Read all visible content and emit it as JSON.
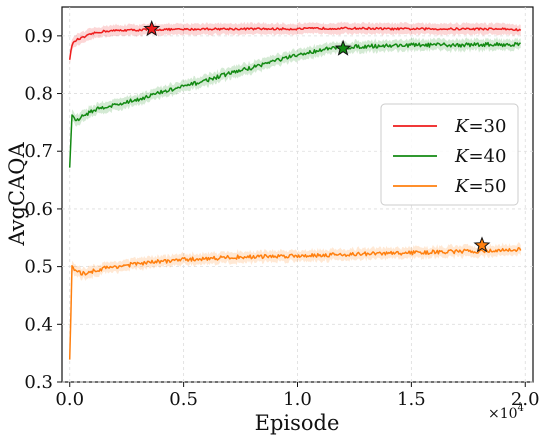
{
  "chart_data": {
    "type": "line",
    "title": "",
    "xlabel": "Episode",
    "ylabel": "AvgCAQA",
    "x_multiplier": "×10",
    "x_multiplier_exp": "4",
    "xlim": [
      0,
      20000
    ],
    "ylim": [
      0.3,
      0.95
    ],
    "x_ticks": [
      0,
      5000,
      10000,
      15000,
      20000
    ],
    "x_tick_labels": [
      "0.0",
      "0.5",
      "1.0",
      "1.5",
      "2.0"
    ],
    "y_ticks": [
      0.3,
      0.4,
      0.5,
      0.6,
      0.7,
      0.8,
      0.9
    ],
    "y_tick_labels": [
      "0.3",
      "0.4",
      "0.5",
      "0.6",
      "0.7",
      "0.8",
      "0.9"
    ],
    "grid": true,
    "legend_position": "center-right",
    "series": [
      {
        "name": "K=30",
        "color": "#ee1c1c",
        "x": [
          0,
          100,
          300,
          600,
          1000,
          1500,
          2000,
          2500,
          3000,
          3500,
          4000,
          5000,
          6000,
          7000,
          8000,
          9000,
          10000,
          11000,
          12000,
          13000,
          14000,
          15000,
          16000,
          17000,
          18000,
          19000,
          19800
        ],
        "y": [
          0.86,
          0.885,
          0.893,
          0.897,
          0.904,
          0.908,
          0.909,
          0.91,
          0.91,
          0.911,
          0.911,
          0.911,
          0.912,
          0.912,
          0.912,
          0.912,
          0.912,
          0.913,
          0.913,
          0.913,
          0.912,
          0.912,
          0.912,
          0.912,
          0.912,
          0.912,
          0.91
        ],
        "marker": {
          "x": 3600,
          "y": 0.912
        }
      },
      {
        "name": "K=40",
        "color": "#138a13",
        "x": [
          0,
          100,
          300,
          600,
          1000,
          1500,
          2000,
          3000,
          4000,
          5000,
          6000,
          7000,
          8000,
          9000,
          10000,
          11000,
          12000,
          13000,
          14000,
          15000,
          16000,
          17000,
          18000,
          19000,
          19800
        ],
        "y": [
          0.67,
          0.765,
          0.752,
          0.762,
          0.77,
          0.777,
          0.78,
          0.79,
          0.802,
          0.812,
          0.823,
          0.835,
          0.845,
          0.857,
          0.866,
          0.876,
          0.88,
          0.882,
          0.883,
          0.884,
          0.884,
          0.884,
          0.885,
          0.885,
          0.885
        ],
        "marker": {
          "x": 12000,
          "y": 0.878
        }
      },
      {
        "name": "K=50",
        "color": "#ff7f0e",
        "x": [
          0,
          100,
          300,
          600,
          1000,
          1500,
          2000,
          3000,
          4000,
          5000,
          6000,
          7000,
          8000,
          9000,
          10000,
          11000,
          12000,
          13000,
          14000,
          15000,
          16000,
          17000,
          18000,
          19000,
          19800
        ],
        "y": [
          0.34,
          0.5,
          0.49,
          0.488,
          0.492,
          0.497,
          0.5,
          0.505,
          0.509,
          0.512,
          0.514,
          0.516,
          0.517,
          0.518,
          0.519,
          0.52,
          0.521,
          0.522,
          0.523,
          0.524,
          0.525,
          0.526,
          0.527,
          0.528,
          0.53
        ],
        "marker": {
          "x": 18100,
          "y": 0.537
        }
      }
    ]
  }
}
